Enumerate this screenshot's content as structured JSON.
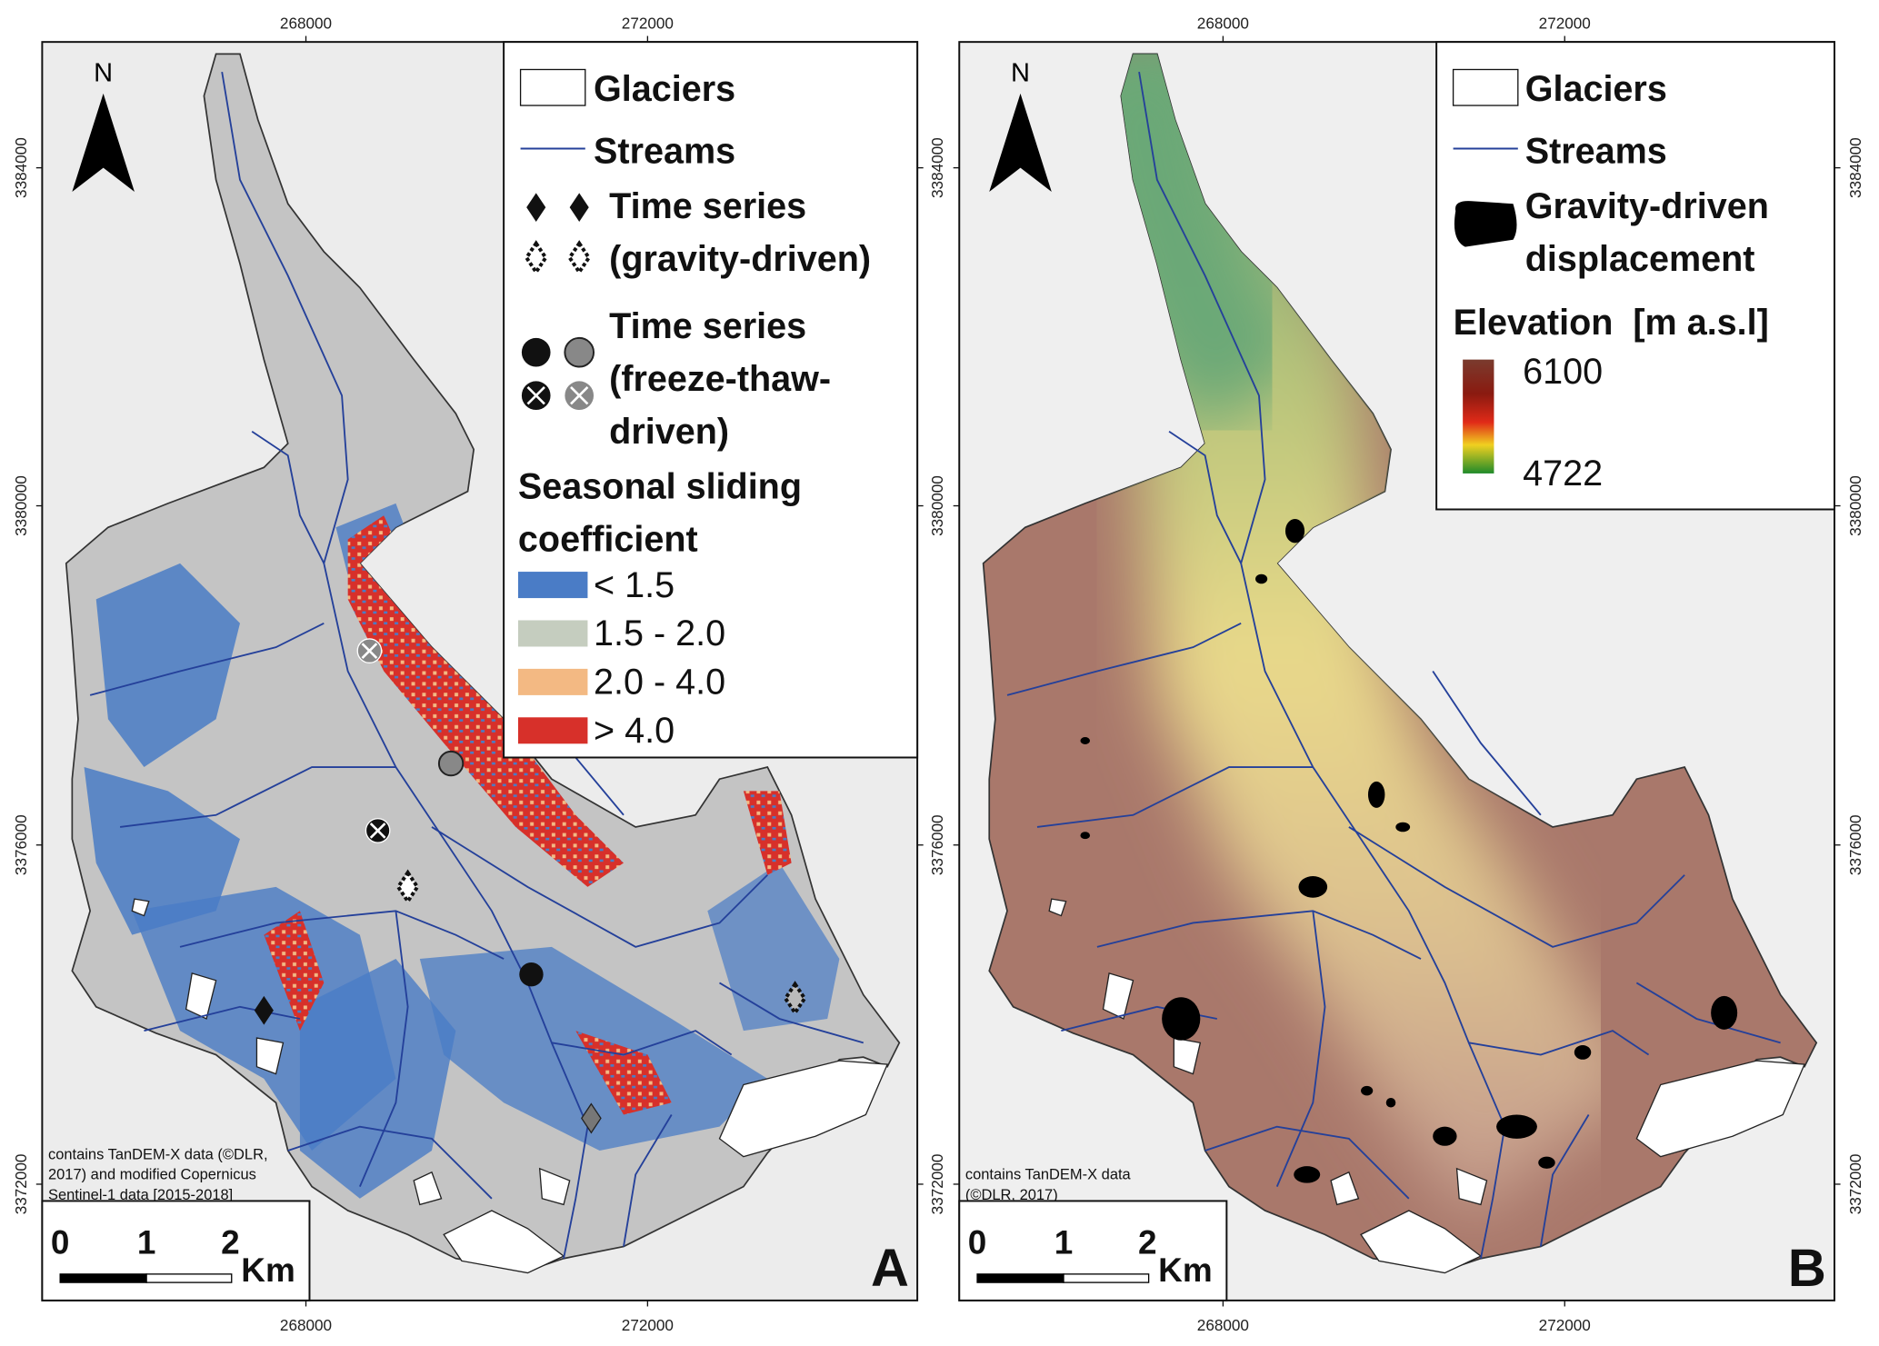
{
  "panels": [
    {
      "letter": "A",
      "north": "N",
      "xticks": [
        268000,
        272000
      ],
      "yticks": [
        3384000,
        3380000,
        3376000,
        3372000
      ],
      "legend": {
        "glaciers": "Glaciers",
        "streams": "Streams",
        "gravity": [
          "Time series",
          "(gravity-driven)"
        ],
        "freeze": [
          "Time series",
          "(freeze-thaw-",
          "driven)"
        ],
        "sliding_title": [
          "Seasonal sliding",
          "coefficient"
        ],
        "classes": [
          {
            "label": "< 1.5",
            "color": "#4a7cc6"
          },
          {
            "label": "1.5 - 2.0",
            "color": "#c5cdbf"
          },
          {
            "label": "2.0 - 4.0",
            "color": "#f3b983"
          },
          {
            "label": "> 4.0",
            "color": "#d7302a"
          }
        ]
      },
      "credit": [
        "contains TanDEM-X data (©DLR,",
        "2017) and modified Copernicus",
        "Sentinel-1 data [2015-2018]"
      ],
      "scale_bar": {
        "labels": [
          "0",
          "1",
          "2"
        ],
        "unit": "Km"
      }
    },
    {
      "letter": "B",
      "north": "N",
      "xticks": [
        268000,
        272000
      ],
      "yticks": [
        3384000,
        3380000,
        3376000,
        3372000
      ],
      "legend": {
        "glaciers": "Glaciers",
        "streams": "Streams",
        "gravity": [
          "Gravity-driven",
          "displacement"
        ],
        "elevation_title": "Elevation  [m a.s.l]",
        "elevation_max": 6100,
        "elevation_min": 4722
      },
      "credit": [
        "contains TanDEM-X data",
        "(©DLR, 2017)"
      ],
      "scale_bar": {
        "labels": [
          "0",
          "1",
          "2"
        ],
        "unit": "Km"
      }
    }
  ]
}
